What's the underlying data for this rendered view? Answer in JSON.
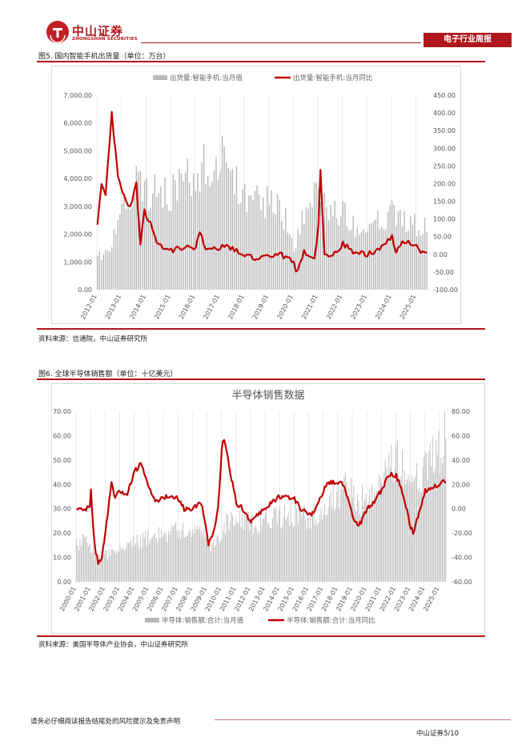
{
  "header": {
    "logo_cn": "中山证券",
    "logo_en": "ZHONGSHAN SECURITIES",
    "tag": "电子行业周报"
  },
  "figure5": {
    "caption": "图5. 国内智能手机出货量（单位：万台）",
    "source": "资料来源：信通院，中山证券研究所",
    "chart_data": {
      "type": "bar+line",
      "legend": [
        "出货量:智能手机:当月值",
        "出货量:智能手机:当月同比"
      ],
      "left_axis": {
        "ticks": [
          "0.00",
          "1,000.00",
          "2,000.00",
          "3,000.00",
          "4,000.00",
          "5,000.00",
          "6,000.00",
          "7,000.00"
        ],
        "ylim": [
          0,
          7000
        ]
      },
      "right_axis": {
        "ticks": [
          "-100.00",
          "-50.00",
          "0.00",
          "50.00",
          "100.00",
          "150.00",
          "200.00",
          "250.00",
          "300.00",
          "350.00",
          "400.00",
          "450.00"
        ],
        "ylim": [
          -100,
          450
        ]
      },
      "x_ticks": [
        "2012-01",
        "2013-01",
        "2014-01",
        "2015-01",
        "2016-01",
        "2017-01",
        "2018-01",
        "2019-01",
        "2020-01",
        "2021-01",
        "2022-01",
        "2023-01",
        "2024-01",
        "2025-01"
      ],
      "monthly_yoy_anchors": [
        [
          "2012-01",
          90
        ],
        [
          "2012-03",
          200
        ],
        [
          "2012-05",
          170
        ],
        [
          "2012-08",
          400
        ],
        [
          "2012-11",
          220
        ],
        [
          "2013-01",
          180
        ],
        [
          "2013-05",
          130
        ],
        [
          "2013-08",
          200
        ],
        [
          "2013-10",
          30
        ],
        [
          "2013-12",
          120
        ],
        [
          "2014-03",
          90
        ],
        [
          "2014-06",
          30
        ],
        [
          "2015-01",
          10
        ],
        [
          "2015-07",
          20
        ],
        [
          "2016-01",
          15
        ],
        [
          "2016-03",
          70
        ],
        [
          "2016-06",
          10
        ],
        [
          "2017-01",
          20
        ],
        [
          "2017-06",
          20
        ],
        [
          "2018-01",
          0
        ],
        [
          "2018-06",
          -10
        ],
        [
          "2019-01",
          0
        ],
        [
          "2019-06",
          0
        ],
        [
          "2020-01",
          -20
        ],
        [
          "2020-02",
          -55
        ],
        [
          "2020-06",
          10
        ],
        [
          "2020-11",
          -20
        ],
        [
          "2021-01",
          80
        ],
        [
          "2021-02",
          240
        ],
        [
          "2021-04",
          0
        ],
        [
          "2021-09",
          0
        ],
        [
          "2022-01",
          30
        ],
        [
          "2022-06",
          10
        ],
        [
          "2023-01",
          0
        ],
        [
          "2023-06",
          10
        ],
        [
          "2024-01",
          50
        ],
        [
          "2024-03",
          10
        ],
        [
          "2024-06",
          40
        ],
        [
          "2025-01",
          20
        ],
        [
          "2025-06",
          0
        ]
      ],
      "monthly_value_anchors": [
        [
          "2012-01",
          1100
        ],
        [
          "2012-08",
          1800
        ],
        [
          "2013-01",
          2800
        ],
        [
          "2013-08",
          3800
        ],
        [
          "2014-01",
          3500
        ],
        [
          "2014-06",
          3600
        ],
        [
          "2015-01",
          3500
        ],
        [
          "2015-06",
          3800
        ],
        [
          "2016-01",
          4200
        ],
        [
          "2016-06",
          4500
        ],
        [
          "2017-01",
          4700
        ],
        [
          "2017-03",
          6000
        ],
        [
          "2017-06",
          4000
        ],
        [
          "2018-01",
          3500
        ],
        [
          "2018-06",
          3300
        ],
        [
          "2019-01",
          3100
        ],
        [
          "2019-06",
          3200
        ],
        [
          "2020-01",
          1500
        ],
        [
          "2020-06",
          2800
        ],
        [
          "2021-01",
          3500
        ],
        [
          "2021-06",
          2600
        ],
        [
          "2022-01",
          2800
        ],
        [
          "2022-06",
          2400
        ],
        [
          "2023-01",
          2200
        ],
        [
          "2023-06",
          2400
        ],
        [
          "2024-01",
          2800
        ],
        [
          "2024-06",
          2400
        ],
        [
          "2025-01",
          2400
        ],
        [
          "2025-06",
          2200
        ]
      ]
    }
  },
  "figure6": {
    "caption": "图6. 全球半导体销售额（单位：十亿美元）",
    "source": "资料来源：美国半导体产业协会，中山证券研究所",
    "chart_data": {
      "type": "bar+line",
      "title": "半导体销售数据",
      "legend": [
        "半导体:销售额:合计:当月值",
        "半导体:销售额:合计:当月同比"
      ],
      "left_axis": {
        "ticks": [
          "0.00",
          "10.00",
          "20.00",
          "30.00",
          "40.00",
          "50.00",
          "60.00",
          "70.00"
        ],
        "ylim": [
          0,
          70
        ]
      },
      "right_axis": {
        "ticks": [
          "-60.00",
          "-40.00",
          "-20.00",
          "0.00",
          "20.00",
          "40.00",
          "60.00",
          "80.00"
        ],
        "ylim": [
          -60,
          80
        ]
      },
      "x_ticks": [
        "2000-01",
        "2001-01",
        "2002-01",
        "2003-01",
        "2004-01",
        "2005-01",
        "2006-01",
        "2007-01",
        "2008-01",
        "2009-01",
        "2010-01",
        "2011-01",
        "2012-01",
        "2013-01",
        "2014-01",
        "2015-01",
        "2016-01",
        "2017-01",
        "2018-01",
        "2019-01",
        "2020-01",
        "2021-01",
        "2022-01",
        "2023-01",
        "2024-01",
        "2025-01"
      ],
      "monthly_yoy_anchors": [
        [
          "2000-01",
          0
        ],
        [
          "2000-12",
          0
        ],
        [
          "2001-01",
          15
        ],
        [
          "2001-04",
          -30
        ],
        [
          "2001-07",
          -45
        ],
        [
          "2001-10",
          -40
        ],
        [
          "2002-06",
          20
        ],
        [
          "2002-09",
          10
        ],
        [
          "2003-01",
          15
        ],
        [
          "2003-06",
          10
        ],
        [
          "2004-01",
          30
        ],
        [
          "2004-06",
          38
        ],
        [
          "2004-12",
          20
        ],
        [
          "2005-06",
          5
        ],
        [
          "2006-01",
          10
        ],
        [
          "2006-06",
          10
        ],
        [
          "2007-01",
          8
        ],
        [
          "2007-06",
          0
        ],
        [
          "2008-01",
          0
        ],
        [
          "2008-08",
          5
        ],
        [
          "2009-01",
          -20
        ],
        [
          "2009-02",
          -30
        ],
        [
          "2009-06",
          -20
        ],
        [
          "2009-10",
          0
        ],
        [
          "2010-01",
          50
        ],
        [
          "2010-03",
          58
        ],
        [
          "2010-08",
          30
        ],
        [
          "2011-01",
          5
        ],
        [
          "2011-06",
          0
        ],
        [
          "2012-01",
          -10
        ],
        [
          "2012-06",
          -5
        ],
        [
          "2013-01",
          0
        ],
        [
          "2013-06",
          5
        ],
        [
          "2014-01",
          10
        ],
        [
          "2014-06",
          10
        ],
        [
          "2015-01",
          8
        ],
        [
          "2015-06",
          0
        ],
        [
          "2016-01",
          -5
        ],
        [
          "2016-06",
          -2
        ],
        [
          "2017-01",
          15
        ],
        [
          "2017-06",
          22
        ],
        [
          "2018-01",
          22
        ],
        [
          "2018-06",
          20
        ],
        [
          "2019-01",
          -5
        ],
        [
          "2019-06",
          -15
        ],
        [
          "2020-01",
          0
        ],
        [
          "2020-06",
          5
        ],
        [
          "2021-01",
          15
        ],
        [
          "2021-06",
          28
        ],
        [
          "2022-01",
          27
        ],
        [
          "2022-06",
          15
        ],
        [
          "2023-01",
          -15
        ],
        [
          "2023-03",
          -20
        ],
        [
          "2023-09",
          0
        ],
        [
          "2024-01",
          15
        ],
        [
          "2024-06",
          18
        ],
        [
          "2025-01",
          18
        ],
        [
          "2025-03",
          25
        ],
        [
          "2025-06",
          20
        ]
      ],
      "monthly_value_anchors": [
        [
          "2000-01",
          15
        ],
        [
          "2000-09",
          18
        ],
        [
          "2001-01",
          14
        ],
        [
          "2001-07",
          10
        ],
        [
          "2002-01",
          11
        ],
        [
          "2003-01",
          12
        ],
        [
          "2004-01",
          16
        ],
        [
          "2005-01",
          18
        ],
        [
          "2006-01",
          20
        ],
        [
          "2007-01",
          21
        ],
        [
          "2008-01",
          22
        ],
        [
          "2008-10",
          21
        ],
        [
          "2009-02",
          14
        ],
        [
          "2009-12",
          20
        ],
        [
          "2010-06",
          25
        ],
        [
          "2011-01",
          25
        ],
        [
          "2012-01",
          24
        ],
        [
          "2013-01",
          25
        ],
        [
          "2014-01",
          27
        ],
        [
          "2015-01",
          28
        ],
        [
          "2016-01",
          26
        ],
        [
          "2016-12",
          30
        ],
        [
          "2017-06",
          33
        ],
        [
          "2018-06",
          40
        ],
        [
          "2019-01",
          35
        ],
        [
          "2019-06",
          33
        ],
        [
          "2020-01",
          34
        ],
        [
          "2020-12",
          38
        ],
        [
          "2021-06",
          45
        ],
        [
          "2022-03",
          51
        ],
        [
          "2022-12",
          45
        ],
        [
          "2023-03",
          39
        ],
        [
          "2023-12",
          46
        ],
        [
          "2024-06",
          50
        ],
        [
          "2025-01",
          55
        ],
        [
          "2025-06",
          62
        ]
      ]
    }
  },
  "footer": {
    "note": "请务必仔细阅读报告结尾处的风险提示及免责声明",
    "page": "中山证券5/10"
  },
  "colors": {
    "accent": "#b0171c",
    "bar": "#b8b8b8",
    "line": "#c00000"
  }
}
